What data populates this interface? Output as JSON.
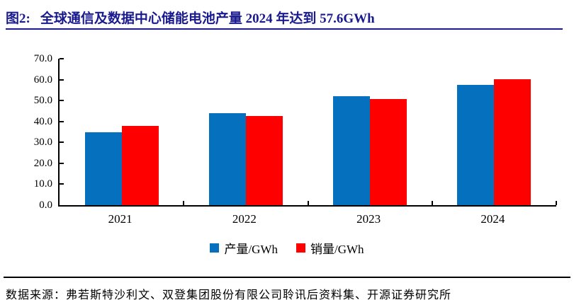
{
  "header": {
    "title_prefix": "图2:",
    "title_text": "全球通信及数据中心储能电池产量 2024 年达到 57.6GWh",
    "accent_color": "#1a1a8f"
  },
  "chart_data": {
    "type": "bar",
    "categories": [
      "2021",
      "2022",
      "2023",
      "2024"
    ],
    "series": [
      {
        "name": "产量/GWh",
        "color": "#0571be",
        "values": [
          35.0,
          43.8,
          52.0,
          57.6
        ]
      },
      {
        "name": "销量/GWh",
        "color": "#ff0000",
        "values": [
          37.8,
          42.5,
          50.7,
          60.3
        ]
      }
    ],
    "ylim": [
      0,
      70
    ],
    "ytick_step": 10,
    "ytick_labels": [
      "0.0",
      "10.0",
      "20.0",
      "30.0",
      "40.0",
      "50.0",
      "60.0",
      "70.0"
    ],
    "grid": false,
    "legend_position": "bottom",
    "axis_color": "#000000"
  },
  "footer": {
    "source_text": "数据来源：弗若斯特沙利文、双登集团股份有限公司聆讯后资料集、开源证券研究所"
  }
}
